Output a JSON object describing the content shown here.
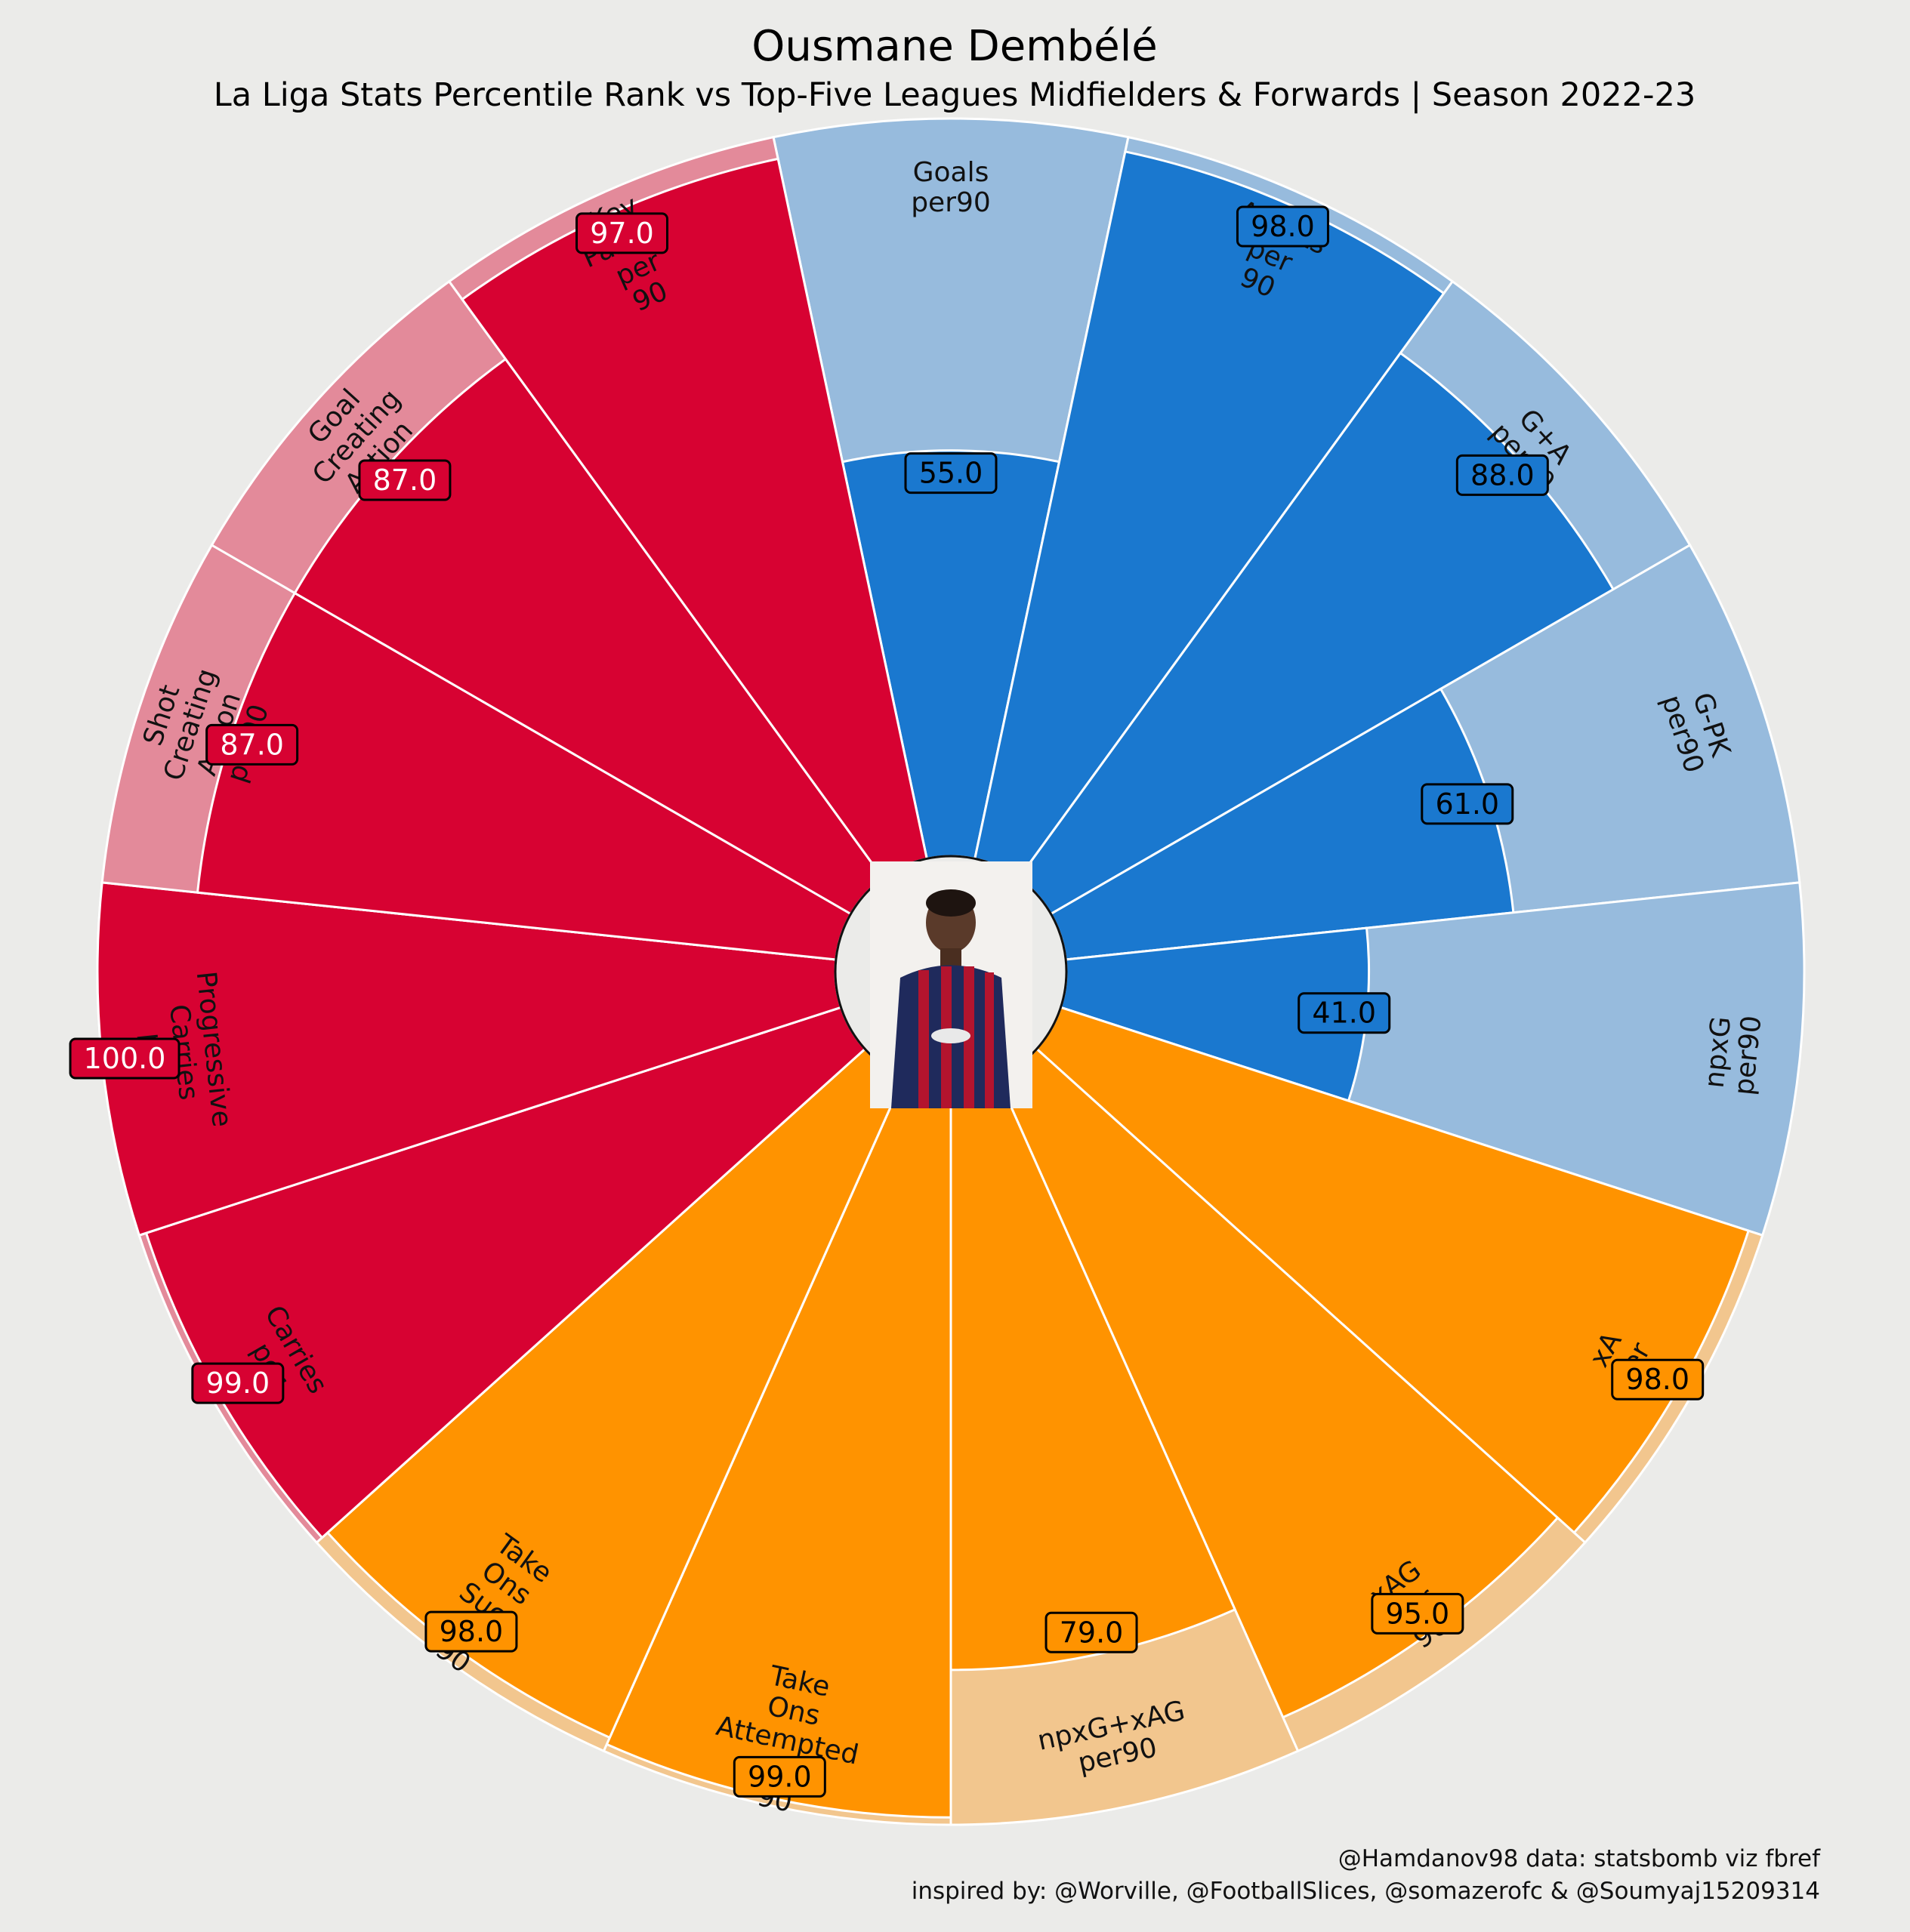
{
  "title": "Ousmane Dembélé",
  "subtitle": "La Liga Stats Percentile Rank vs Top-Five Leagues Midfielders & Forwards | Season 2022-23",
  "credits": {
    "line1": "@Hamdanov98 data: statsbomb viz fbref",
    "line2": "inspired by: @Worville, @FootballSlices, @somazerofc & @Soumyaj15209314"
  },
  "player_photo": {
    "icon": "player-photo-icon",
    "description_hidden": true
  },
  "colors": {
    "background": "#ebebe9",
    "attacking": "#1a78cf",
    "attacking_light": "#97bbdd",
    "possession": "#d70232",
    "possession_light": "#e38a9a",
    "passing": "#ff9300",
    "passing_light": "#f2c68e",
    "divider": "#ffffff"
  },
  "chart_data": {
    "type": "pie",
    "style": "pizza",
    "range": [
      0,
      100
    ],
    "start": "top",
    "direction": "clockwise",
    "slices": [
      {
        "label": "Goals\nper90",
        "value": 55,
        "display": "55.0",
        "group": "attacking"
      },
      {
        "label": "Assists\nper\n90",
        "value": 98,
        "display": "98.0",
        "group": "attacking"
      },
      {
        "label": "G+A\nper90",
        "value": 88,
        "display": "88.0",
        "group": "attacking"
      },
      {
        "label": "G-PK\nper90",
        "value": 61,
        "display": "61.0",
        "group": "attacking"
      },
      {
        "label": "npxG\nper90",
        "value": 41,
        "display": "41.0",
        "group": "attacking"
      },
      {
        "label": "xA\nper\n90",
        "value": 98,
        "display": "98.0",
        "group": "passing"
      },
      {
        "label": "xAG\nper\n90",
        "value": 95,
        "display": "95.0",
        "group": "passing"
      },
      {
        "label": "npxG+xAG\nper90",
        "value": 79,
        "display": "79.0",
        "group": "passing"
      },
      {
        "label": "Take\nOns\nAttempted\nper\n90",
        "value": 99,
        "display": "99.0",
        "group": "passing"
      },
      {
        "label": "Take\nOns\nSucc\nper\n90",
        "value": 98,
        "display": "98.0",
        "group": "passing"
      },
      {
        "label": "Carries\nper\n90",
        "value": 99,
        "display": "99.0",
        "group": "possession"
      },
      {
        "label": "Progressive\nCarries\nper\n90",
        "value": 100,
        "display": "100.0",
        "group": "possession"
      },
      {
        "label": "Shot\nCreating\nAction\nper90",
        "value": 87,
        "display": "87.0",
        "group": "possession"
      },
      {
        "label": "Goal\nCreating\nAction\n90",
        "value": 87,
        "display": "87.0",
        "group": "possession"
      },
      {
        "label": "Key\nPasses\nper\n90",
        "value": 97,
        "display": "97.0",
        "group": "possession"
      }
    ]
  }
}
